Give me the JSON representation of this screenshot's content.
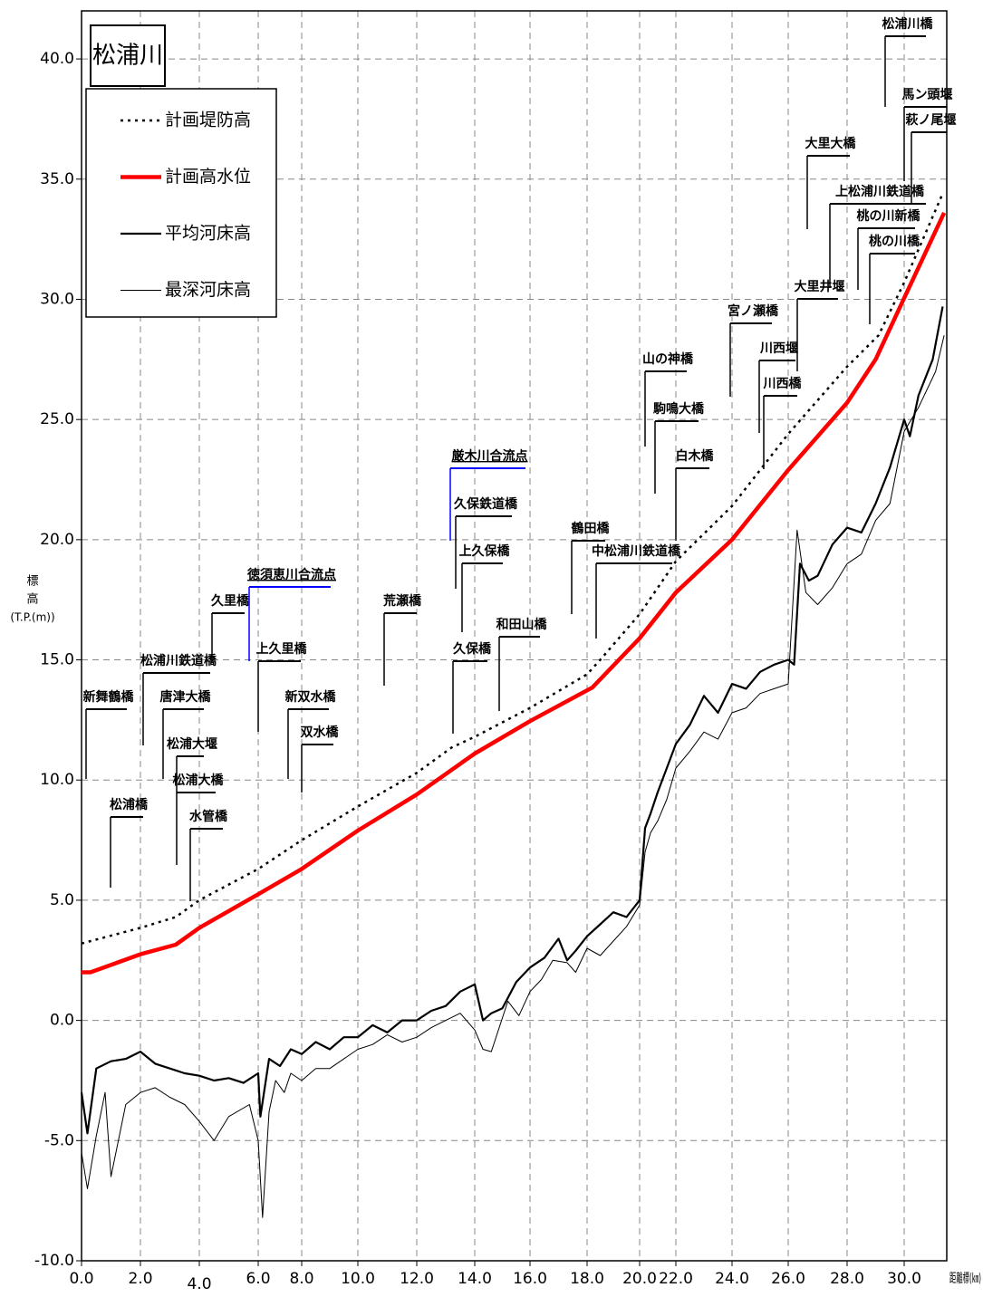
{
  "chart_data": {
    "type": "line",
    "title": "松浦川",
    "ylabel": [
      "標",
      "高",
      "(T.P.(m))"
    ],
    "xlabel": "距離標(㎞)",
    "xlim": [
      0,
      31.5
    ],
    "ylim": [
      -10,
      42
    ],
    "grid": true,
    "xticks": [
      {
        "value": 0,
        "label": "0.0"
      },
      {
        "value": 2,
        "label": "2.0"
      },
      {
        "value": 4,
        "label": "4.0"
      },
      {
        "value": 6,
        "label": "6.0"
      },
      {
        "value": 8,
        "label": "8.0"
      },
      {
        "value": 10,
        "label": "10.0"
      },
      {
        "value": 12,
        "label": "12.0"
      },
      {
        "value": 14,
        "label": "14.0"
      },
      {
        "value": 16,
        "label": "16.0"
      },
      {
        "value": 18,
        "label": "18.0"
      },
      {
        "value": 20,
        "label": "20.0"
      },
      {
        "value": 22,
        "label": "22.0"
      },
      {
        "value": 24,
        "label": "24.0"
      },
      {
        "value": 26,
        "label": "26.0"
      },
      {
        "value": 28,
        "label": "28.0"
      },
      {
        "value": 30,
        "label": "30.0"
      }
    ],
    "yticks": [
      {
        "value": -10,
        "label": "-10.0"
      },
      {
        "value": -5,
        "label": "-5.0"
      },
      {
        "value": 0,
        "label": "0.0"
      },
      {
        "value": 5,
        "label": "5.0"
      },
      {
        "value": 10,
        "label": "10.0"
      },
      {
        "value": 15,
        "label": "15.0"
      },
      {
        "value": 20,
        "label": "20.0"
      },
      {
        "value": 25,
        "label": "25.0"
      },
      {
        "value": 30,
        "label": "30.0"
      },
      {
        "value": 35,
        "label": "35.0"
      },
      {
        "value": 40,
        "label": "40.0"
      }
    ],
    "series": [
      {
        "name": "計画堤防高",
        "color": "#000000",
        "width": 2.5,
        "dash": "3,5",
        "x": [
          0,
          2,
          3.2,
          4,
          6,
          8,
          10,
          12,
          13.2,
          14,
          16,
          18,
          18.5,
          20,
          22,
          24,
          26,
          28,
          29.1,
          30,
          31.35
        ],
        "values": [
          3.2,
          3.85,
          4.3,
          5.0,
          6.3,
          7.5,
          8.9,
          10.3,
          11.35,
          11.8,
          13.0,
          14.4,
          15.0,
          16.9,
          19.1,
          21.4,
          24.4,
          27.2,
          28.5,
          30.7,
          34.4
        ]
      },
      {
        "name": "計画高水位",
        "color": "#ff0000",
        "width": 4.5,
        "dash": "",
        "x": [
          0,
          0.3,
          2,
          3.2,
          4,
          6,
          8,
          10,
          12,
          14,
          16,
          18.2,
          20,
          22,
          24,
          26,
          28,
          29,
          30,
          31.4
        ],
        "values": [
          2.0,
          2.0,
          2.75,
          3.15,
          3.85,
          5.25,
          6.3,
          7.9,
          9.4,
          11.1,
          12.45,
          13.85,
          15.9,
          17.8,
          20.0,
          22.9,
          25.7,
          27.5,
          30.05,
          33.6
        ]
      },
      {
        "name": "平均河床高",
        "color": "#000000",
        "width": 2.2,
        "dash": "",
        "x": [
          0,
          0.2,
          0.5,
          1.0,
          1.5,
          2.0,
          2.5,
          3.0,
          3.5,
          4.0,
          4.5,
          5.0,
          5.5,
          6.0,
          6.1,
          6.5,
          7.0,
          7.5,
          8.0,
          8.5,
          9.0,
          9.5,
          10.0,
          10.5,
          11.0,
          11.5,
          12.0,
          12.5,
          13.0,
          13.5,
          14.0,
          14.3,
          14.6,
          15.0,
          15.5,
          16.0,
          16.5,
          17.0,
          17.3,
          17.6,
          18.0,
          18.5,
          19.0,
          19.5,
          20.0,
          20.3,
          20.6,
          21.0,
          21.5,
          22.0,
          22.5,
          23.0,
          23.5,
          24.0,
          24.5,
          25.0,
          25.5,
          26.0,
          26.2,
          26.4,
          26.7,
          27.0,
          27.5,
          28.0,
          28.5,
          29.0,
          29.5,
          30.0,
          30.2,
          30.5,
          31.0,
          31.35
        ],
        "values": [
          -3.0,
          -4.7,
          -2.0,
          -1.7,
          -1.6,
          -1.3,
          -1.8,
          -2.0,
          -2.2,
          -2.3,
          -2.5,
          -2.4,
          -2.6,
          -2.2,
          -4.0,
          -1.6,
          -1.9,
          -1.2,
          -1.4,
          -0.9,
          -1.2,
          -0.7,
          -0.7,
          -0.2,
          -0.5,
          0.0,
          0.0,
          0.4,
          0.6,
          1.2,
          1.5,
          0.0,
          0.3,
          0.5,
          1.6,
          2.2,
          2.6,
          3.4,
          2.5,
          2.9,
          3.5,
          4.0,
          4.5,
          4.3,
          5.0,
          8.0,
          8.6,
          9.5,
          10.5,
          11.5,
          12.3,
          13.5,
          12.8,
          14.0,
          13.8,
          14.5,
          14.8,
          15.0,
          14.8,
          19.0,
          18.3,
          18.5,
          19.8,
          20.5,
          20.3,
          21.5,
          23.0,
          25.0,
          24.3,
          26.0,
          27.5,
          29.7
        ]
      },
      {
        "name": "最深河床高",
        "color": "#000000",
        "width": 1.0,
        "dash": "",
        "x": [
          0,
          0.2,
          0.5,
          0.8,
          1.0,
          1.5,
          2.0,
          2.5,
          3.0,
          3.5,
          4.0,
          4.5,
          5.0,
          5.7,
          6.0,
          6.2,
          6.5,
          6.8,
          7.2,
          7.5,
          8.0,
          8.5,
          9.0,
          9.5,
          10.0,
          10.5,
          11.0,
          11.5,
          12.0,
          12.5,
          13.0,
          13.5,
          14.0,
          14.3,
          14.6,
          15.2,
          15.6,
          16.0,
          16.4,
          16.8,
          17.3,
          17.6,
          18.0,
          18.5,
          19.0,
          19.5,
          20.0,
          20.3,
          20.6,
          21.0,
          21.5,
          22.0,
          22.5,
          23.0,
          23.5,
          24.0,
          24.5,
          25.0,
          25.5,
          26.0,
          26.3,
          26.6,
          27.0,
          27.5,
          28.0,
          28.5,
          29.0,
          29.5,
          30.0,
          30.5,
          31.1,
          31.4
        ],
        "values": [
          -5.5,
          -7.0,
          -4.8,
          -3.0,
          -6.5,
          -3.5,
          -3.0,
          -2.8,
          -3.2,
          -3.5,
          -4.2,
          -5.0,
          -4.0,
          -3.5,
          -5.0,
          -8.2,
          -3.8,
          -2.5,
          -3.0,
          -2.2,
          -2.5,
          -2.0,
          -2.0,
          -1.6,
          -1.2,
          -1.0,
          -0.6,
          -0.9,
          -0.7,
          -0.3,
          0.0,
          0.3,
          -0.4,
          -1.2,
          -1.3,
          0.8,
          0.2,
          1.2,
          1.7,
          2.5,
          2.4,
          2.0,
          3.0,
          2.7,
          3.3,
          3.9,
          4.8,
          7.0,
          7.8,
          8.3,
          9.2,
          10.5,
          11.2,
          12.0,
          11.7,
          12.8,
          13.0,
          13.6,
          13.8,
          14.0,
          20.4,
          17.8,
          17.3,
          18.0,
          19.0,
          19.4,
          20.8,
          21.5,
          24.5,
          25.5,
          27.0,
          28.5
        ]
      }
    ],
    "annotations": [
      {
        "text": "新舞鶴橋",
        "color": "#000000"
      },
      {
        "text": "松浦橋",
        "color": "#000000"
      },
      {
        "text": "松浦川鉄道橋",
        "color": "#000000"
      },
      {
        "text": "唐津大橋",
        "color": "#000000"
      },
      {
        "text": "松浦大堰",
        "color": "#000000"
      },
      {
        "text": "松浦大橋",
        "color": "#000000"
      },
      {
        "text": "水管橋",
        "color": "#000000"
      },
      {
        "text": "久里橋",
        "color": "#000000"
      },
      {
        "text": "徳須恵川合流点",
        "color": "#0000ff"
      },
      {
        "text": "上久里橋",
        "color": "#000000"
      },
      {
        "text": "新双水橋",
        "color": "#000000"
      },
      {
        "text": "双水橋",
        "color": "#000000"
      },
      {
        "text": "荒瀬橋",
        "color": "#000000"
      },
      {
        "text": "久保橋",
        "color": "#000000"
      },
      {
        "text": "和田山橋",
        "color": "#000000"
      },
      {
        "text": "上久保橋",
        "color": "#000000"
      },
      {
        "text": "久保鉄道橋",
        "color": "#000000"
      },
      {
        "text": "厳木川合流点",
        "color": "#0000ff"
      },
      {
        "text": "鶴田橋",
        "color": "#000000"
      },
      {
        "text": "中松浦川鉄道橋",
        "color": "#000000"
      },
      {
        "text": "山の神橋",
        "color": "#000000"
      },
      {
        "text": "駒鳴大橋",
        "color": "#000000"
      },
      {
        "text": "白木橋",
        "color": "#000000"
      },
      {
        "text": "宮ノ瀬橋",
        "color": "#000000"
      },
      {
        "text": "川西堰",
        "color": "#000000"
      },
      {
        "text": "川西橋",
        "color": "#000000"
      },
      {
        "text": "大里井堰",
        "color": "#000000"
      },
      {
        "text": "大里大橋",
        "color": "#000000"
      },
      {
        "text": "上松浦川鉄道橋",
        "color": "#000000"
      },
      {
        "text": "桃の川新橋",
        "color": "#000000"
      },
      {
        "text": "桃の川橋",
        "color": "#000000"
      },
      {
        "text": "松浦川橋",
        "color": "#000000"
      },
      {
        "text": "馬ン頭堰",
        "color": "#000000"
      },
      {
        "text": "萩ノ尾堰",
        "color": "#000000"
      }
    ]
  }
}
